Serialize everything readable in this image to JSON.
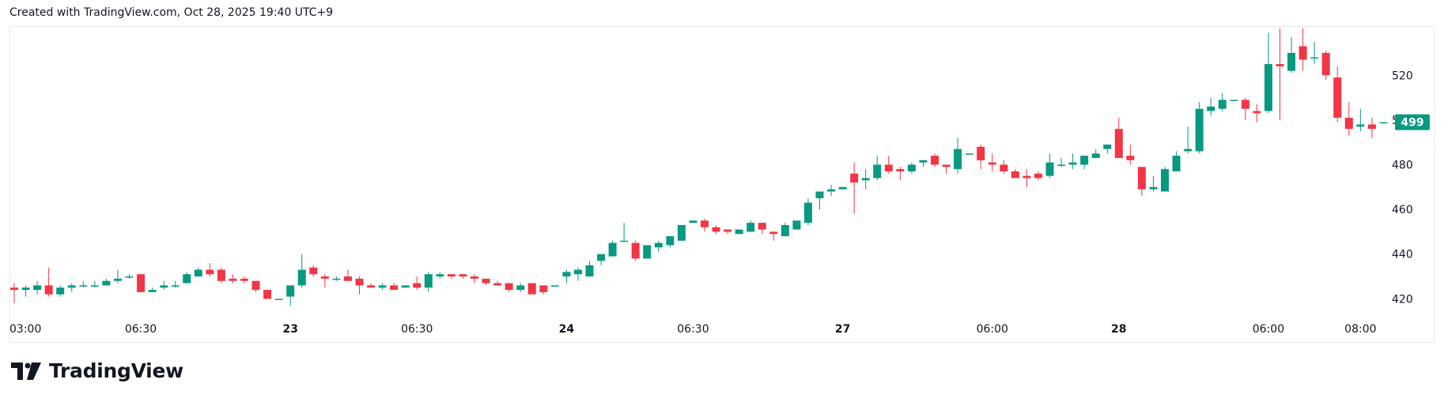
{
  "header": {
    "text": "Created with TradingView.com, Oct 28, 2025 19:40 UTC+9"
  },
  "brand": {
    "name": "TradingView",
    "logo_icon": "tradingview-logo-icon"
  },
  "colors": {
    "up": "#089981",
    "down": "#f23645",
    "price_badge": "#089981"
  },
  "chart_data": {
    "type": "candlestick",
    "ylim": [
      412,
      542
    ],
    "y_ticks": [
      420,
      440,
      460,
      480,
      500,
      520
    ],
    "y_tick_labels": [
      "420",
      "440",
      "460",
      "480",
      "500",
      "520"
    ],
    "x_ticks": [
      {
        "i": 0,
        "label": "03:00",
        "bold": false
      },
      {
        "i": 11,
        "label": "06:30",
        "bold": false
      },
      {
        "i": 24,
        "label": "23",
        "bold": true
      },
      {
        "i": 35,
        "label": "06:30",
        "bold": false
      },
      {
        "i": 48,
        "label": "24",
        "bold": true
      },
      {
        "i": 59,
        "label": "06:30",
        "bold": false
      },
      {
        "i": 72,
        "label": "27",
        "bold": true
      },
      {
        "i": 85,
        "label": "06:00",
        "bold": false
      },
      {
        "i": 96,
        "label": "28",
        "bold": true
      },
      {
        "i": 109,
        "label": "06:00",
        "bold": false
      },
      {
        "i": 117,
        "label": "08:00",
        "bold": false
      }
    ],
    "last_price": "499",
    "last_price_value": 499,
    "candles": [
      [
        425,
        427,
        418,
        424
      ],
      [
        424,
        426,
        421,
        425
      ],
      [
        424,
        428,
        422,
        426
      ],
      [
        426,
        434,
        421,
        422
      ],
      [
        422,
        426,
        421,
        425
      ],
      [
        425,
        427,
        423,
        426
      ],
      [
        426,
        428,
        425,
        426
      ],
      [
        426,
        428,
        425,
        426
      ],
      [
        426,
        429,
        426,
        428
      ],
      [
        428,
        433,
        427,
        429
      ],
      [
        430,
        431,
        429,
        430
      ],
      [
        431,
        431,
        423,
        423
      ],
      [
        423,
        425,
        423,
        424
      ],
      [
        425,
        428,
        424,
        426
      ],
      [
        426,
        428,
        425,
        426
      ],
      [
        427,
        432,
        427,
        431
      ],
      [
        430,
        434,
        430,
        433
      ],
      [
        433,
        436,
        430,
        431
      ],
      [
        433,
        434,
        427,
        428
      ],
      [
        429,
        431,
        427,
        428
      ],
      [
        429,
        430,
        427,
        428
      ],
      [
        428,
        428,
        423,
        424
      ],
      [
        424,
        424,
        420,
        420
      ],
      [
        420,
        420,
        420,
        420
      ],
      [
        421,
        426,
        417,
        426
      ],
      [
        426,
        440,
        425,
        433
      ],
      [
        434,
        435,
        430,
        431
      ],
      [
        430,
        431,
        425,
        429
      ],
      [
        429,
        430,
        428,
        429
      ],
      [
        430,
        433,
        428,
        428
      ],
      [
        429,
        430,
        422,
        426
      ],
      [
        426,
        427,
        425,
        425
      ],
      [
        425,
        427,
        424,
        426
      ],
      [
        426,
        427,
        424,
        424
      ],
      [
        425,
        426,
        425,
        426
      ],
      [
        427,
        430,
        424,
        425
      ],
      [
        425,
        432,
        423,
        431
      ],
      [
        430,
        432,
        429,
        431
      ],
      [
        431,
        431,
        429,
        430
      ],
      [
        431,
        431,
        429,
        430
      ],
      [
        430,
        431,
        427,
        429
      ],
      [
        429,
        429,
        426,
        427
      ],
      [
        427,
        428,
        426,
        426
      ],
      [
        427,
        427,
        423,
        424
      ],
      [
        424,
        427,
        423,
        426
      ],
      [
        427,
        427,
        423,
        422
      ],
      [
        426,
        426,
        422,
        423
      ],
      [
        426,
        426,
        426,
        426
      ],
      [
        430,
        433,
        427,
        432
      ],
      [
        431,
        434,
        428,
        433
      ],
      [
        430,
        437,
        430,
        435
      ],
      [
        437,
        440,
        435,
        440
      ],
      [
        439,
        446,
        439,
        445
      ],
      [
        446,
        454,
        446,
        446
      ],
      [
        445,
        446,
        437,
        438
      ],
      [
        438,
        444,
        438,
        444
      ],
      [
        443,
        446,
        441,
        445
      ],
      [
        444,
        448,
        443,
        448
      ],
      [
        446,
        453,
        446,
        453
      ],
      [
        454,
        455,
        454,
        455
      ],
      [
        455,
        456,
        450,
        452
      ],
      [
        452,
        453,
        449,
        450
      ],
      [
        451,
        451,
        449,
        450
      ],
      [
        449,
        451,
        449,
        451
      ],
      [
        450,
        455,
        450,
        454
      ],
      [
        454,
        454,
        449,
        451
      ],
      [
        450,
        450,
        446,
        449
      ],
      [
        448,
        454,
        448,
        453
      ],
      [
        451,
        455,
        451,
        455
      ],
      [
        454,
        465,
        453,
        463
      ],
      [
        465,
        468,
        460,
        468
      ],
      [
        468,
        471,
        466,
        469
      ],
      [
        469,
        470,
        469,
        470
      ],
      [
        476,
        481,
        458,
        472
      ],
      [
        473,
        478,
        469,
        474
      ],
      [
        474,
        484,
        473,
        480
      ],
      [
        480,
        484,
        476,
        477
      ],
      [
        478,
        479,
        473,
        477
      ],
      [
        477,
        481,
        476,
        480
      ],
      [
        481,
        482,
        479,
        482
      ],
      [
        484,
        485,
        479,
        480
      ],
      [
        480,
        480,
        476,
        479
      ],
      [
        478,
        492,
        476,
        487
      ],
      [
        485,
        485,
        485,
        485
      ],
      [
        488,
        489,
        478,
        482
      ],
      [
        481,
        485,
        477,
        480
      ],
      [
        480,
        482,
        476,
        477
      ],
      [
        477,
        478,
        474,
        474
      ],
      [
        475,
        478,
        470,
        474
      ],
      [
        476,
        477,
        473,
        474
      ],
      [
        475,
        485,
        474,
        481
      ],
      [
        480,
        483,
        479,
        480
      ],
      [
        480,
        485,
        478,
        481
      ],
      [
        480,
        484,
        478,
        484
      ],
      [
        483,
        487,
        483,
        485
      ],
      [
        487,
        489,
        485,
        489
      ],
      [
        496,
        501,
        483,
        483
      ],
      [
        484,
        489,
        480,
        482
      ],
      [
        479,
        479,
        466,
        469
      ],
      [
        469,
        475,
        468,
        470
      ],
      [
        468,
        479,
        468,
        478
      ],
      [
        477,
        486,
        477,
        484
      ],
      [
        486,
        497,
        485,
        487
      ],
      [
        486,
        508,
        485,
        505
      ],
      [
        504,
        510,
        502,
        506
      ],
      [
        505,
        512,
        504,
        509
      ],
      [
        509,
        509,
        509,
        509
      ],
      [
        509,
        510,
        500,
        505
      ],
      [
        504,
        507,
        499,
        503
      ],
      [
        504,
        539,
        503,
        525
      ],
      [
        525,
        541,
        500,
        524
      ],
      [
        522,
        537,
        521,
        530
      ],
      [
        533,
        541,
        522,
        527
      ],
      [
        528,
        535,
        525,
        528
      ],
      [
        530,
        531,
        518,
        520
      ],
      [
        519,
        524,
        499,
        501
      ],
      [
        501,
        508,
        493,
        496
      ],
      [
        497,
        505,
        495,
        498
      ],
      [
        498,
        501,
        492,
        496
      ],
      [
        499,
        499,
        499,
        499
      ]
    ]
  }
}
